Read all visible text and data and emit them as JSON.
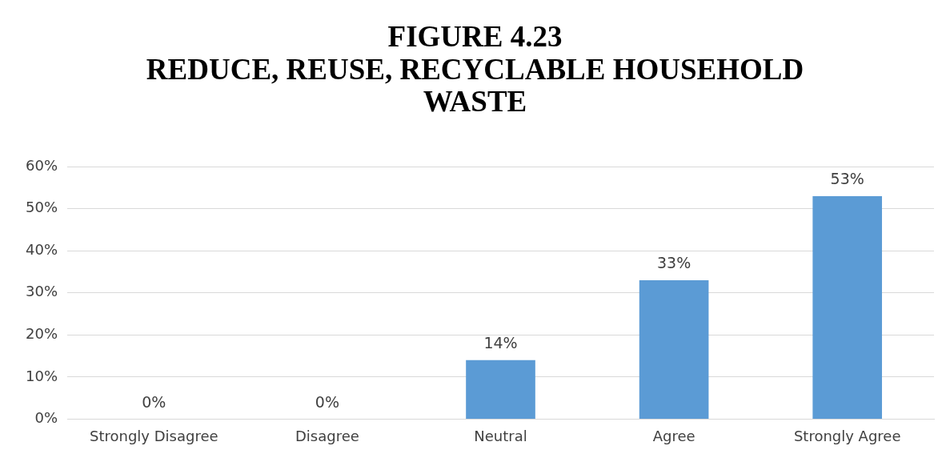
{
  "chart_data": {
    "type": "bar",
    "title": "FIGURE 4.23\nREDUCE, REUSE, RECYCLABLE HOUSEHOLD\nWASTE",
    "categories": [
      "Strongly Disagree",
      "Disagree",
      "Neutral",
      "Agree",
      "Strongly Agree"
    ],
    "values": [
      0,
      0,
      14,
      33,
      53
    ],
    "value_labels": [
      "0%",
      "0%",
      "14%",
      "33%",
      "53%"
    ],
    "color": "#5b9bd5",
    "ylim": [
      0,
      60
    ],
    "yticks": [
      {
        "value": 0,
        "label": "0%"
      },
      {
        "value": 10,
        "label": "10%"
      },
      {
        "value": 20,
        "label": "20%"
      },
      {
        "value": 30,
        "label": "30%"
      },
      {
        "value": 40,
        "label": "40%"
      },
      {
        "value": 50,
        "label": "50%"
      },
      {
        "value": 60,
        "label": "60%"
      }
    ],
    "grid": "y",
    "legend": false
  }
}
